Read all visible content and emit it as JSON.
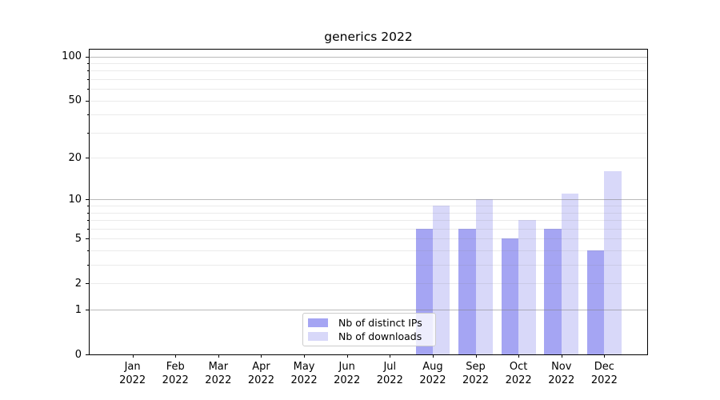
{
  "figure": {
    "title": "generics 2022",
    "background": "#ffffff"
  },
  "chart_data": {
    "type": "bar",
    "title": "generics 2022",
    "categories": [
      "Jan",
      "Feb",
      "Mar",
      "Apr",
      "May",
      "Jun",
      "Jul",
      "Aug",
      "Sep",
      "Oct",
      "Nov",
      "Dec"
    ],
    "category_year": "2022",
    "series": [
      {
        "name": "Nb of distinct IPs",
        "color": "#a5a5f3",
        "values": [
          0,
          0,
          0,
          0,
          0,
          0,
          0,
          6,
          6,
          5,
          6,
          4
        ]
      },
      {
        "name": "Nb of downloads",
        "color": "#d8d8f9",
        "values": [
          0,
          0,
          0,
          0,
          0,
          0,
          0,
          9,
          10,
          7,
          11,
          16
        ]
      }
    ],
    "y_axis": {
      "scale": "log1p",
      "ticks_labeled": [
        0,
        1,
        2,
        5,
        10,
        20,
        50,
        100
      ],
      "ticks_minor": [
        3,
        4,
        6,
        7,
        8,
        9,
        30,
        40,
        60,
        70,
        80,
        90
      ],
      "ylim": [
        0,
        111
      ]
    },
    "x_axis": {
      "label_format": "month over year"
    },
    "grid": {
      "orientation": "horizontal",
      "major_color": "rgba(130,130,130,0.55)",
      "minor_color": "rgba(130,130,130,0.16)"
    },
    "legend": {
      "position": "bottom-center",
      "items": [
        "Nb of distinct IPs",
        "Nb of downloads"
      ]
    }
  }
}
